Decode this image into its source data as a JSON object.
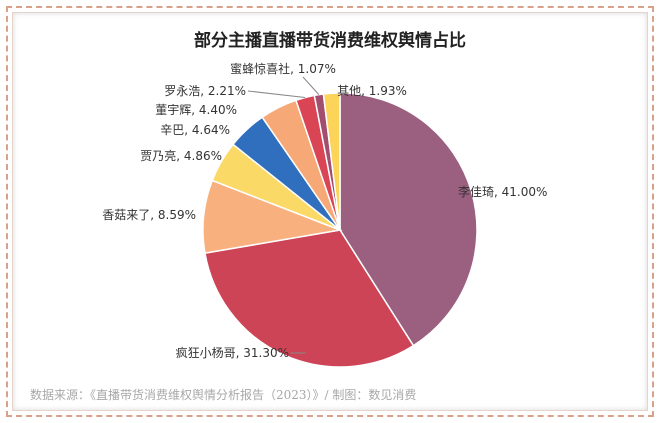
{
  "chart_data": {
    "type": "pie",
    "title": "部分主播直播带货消费维权舆情占比",
    "categories": [
      "李佳琦",
      "疯狂小杨哥",
      "香菇来了",
      "贾乃亮",
      "辛巴",
      "董宇辉",
      "罗永浩",
      "蜜蜂惊喜社",
      "其他"
    ],
    "values": [
      41.0,
      31.3,
      8.59,
      4.86,
      4.64,
      4.4,
      2.21,
      1.07,
      1.93
    ],
    "labels": [
      "李佳琦, 41.00%",
      "疯狂小杨哥, 31.30%",
      "香菇来了, 8.59%",
      "贾乃亮, 4.86%",
      "辛巴, 4.64%",
      "董宇辉, 4.40%",
      "罗永浩, 2.21%",
      "蜜蜂惊喜社, 1.07%",
      "其他, 1.93%"
    ],
    "colors": [
      "#9b5f7f",
      "#cc4456",
      "#f8b07f",
      "#fbd966",
      "#2f6fbe",
      "#f6a877",
      "#d94554",
      "#a24e6e",
      "#fcd45a"
    ],
    "legend": "none"
  },
  "source": "数据来源：《直播带货消费维权舆情分析报告（2023）》/ 制图：数见消费"
}
